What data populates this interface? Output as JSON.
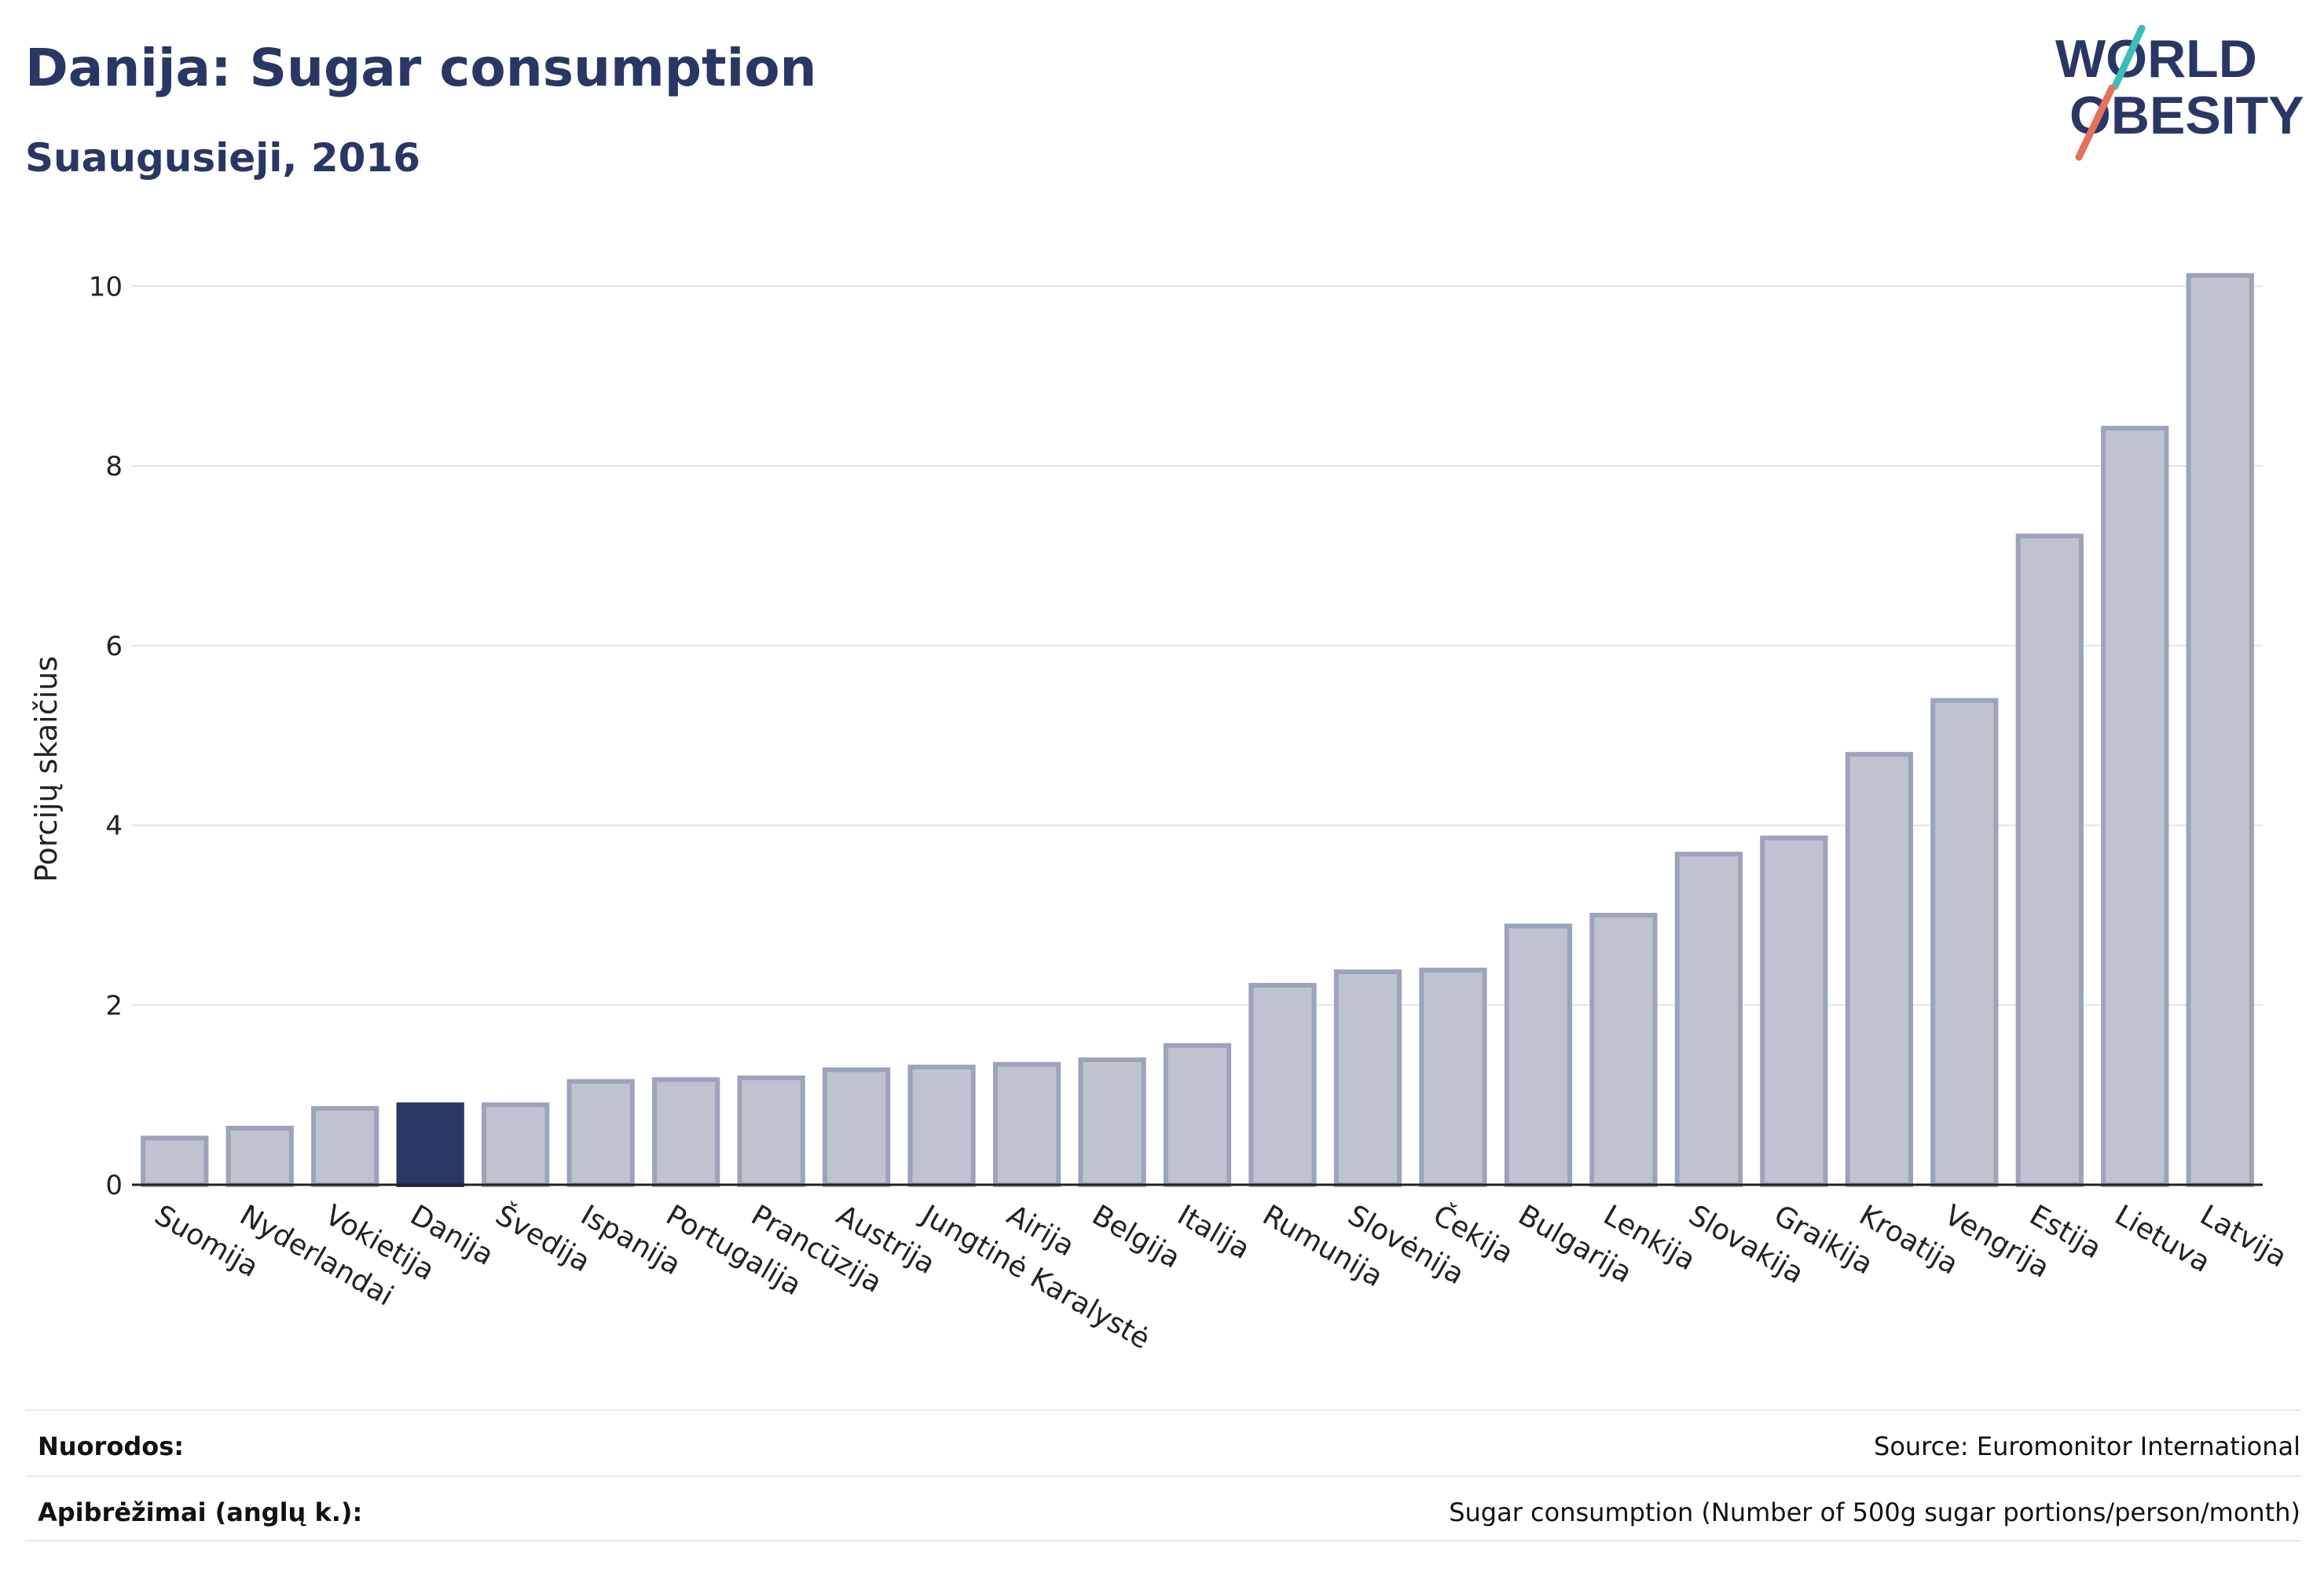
{
  "header": {
    "title": "Danija: Sugar consumption",
    "subtitle": "Suaugusieji, 2016"
  },
  "logo": {
    "line1": "WORLD",
    "line2": "OBESITY",
    "slash_colors": [
      "#3dbdb8",
      "#e2725b"
    ]
  },
  "chart_data": {
    "type": "bar",
    "ylabel": "Porcijų skaičius",
    "ylim": [
      0,
      10.3
    ],
    "yticks": [
      0,
      2,
      4,
      6,
      8,
      10
    ],
    "grid": true,
    "highlight": "Danija",
    "colors": {
      "bar": "#bfc3d1",
      "bar_border": "#9da3b9",
      "highlight": "#2a3663"
    },
    "categories": [
      "Suomija",
      "Nyderlandai",
      "Vokietija",
      "Danija",
      "Švedija",
      "Ispanija",
      "Portugalija",
      "Prancūzija",
      "Austrija",
      "Jungtinė Karalystė",
      "Airija",
      "Belgija",
      "Italija",
      "Rumunija",
      "Slovėnija",
      "Čekija",
      "Bulgarija",
      "Lenkija",
      "Slovakija",
      "Graikija",
      "Kroatija",
      "Vengrija",
      "Estija",
      "Lietuva",
      "Latvija"
    ],
    "values": [
      0.52,
      0.63,
      0.85,
      0.89,
      0.89,
      1.15,
      1.17,
      1.19,
      1.28,
      1.31,
      1.34,
      1.39,
      1.55,
      2.22,
      2.37,
      2.39,
      2.88,
      3.0,
      3.68,
      3.86,
      4.79,
      5.39,
      7.22,
      8.42,
      10.12
    ]
  },
  "footer": {
    "references_label": "Nuorodos:",
    "references_value": "Source: Euromonitor International",
    "definitions_label": "Apibrėžimai (anglų k.):",
    "definitions_value": "Sugar consumption (Number of 500g sugar portions/person/month)"
  }
}
